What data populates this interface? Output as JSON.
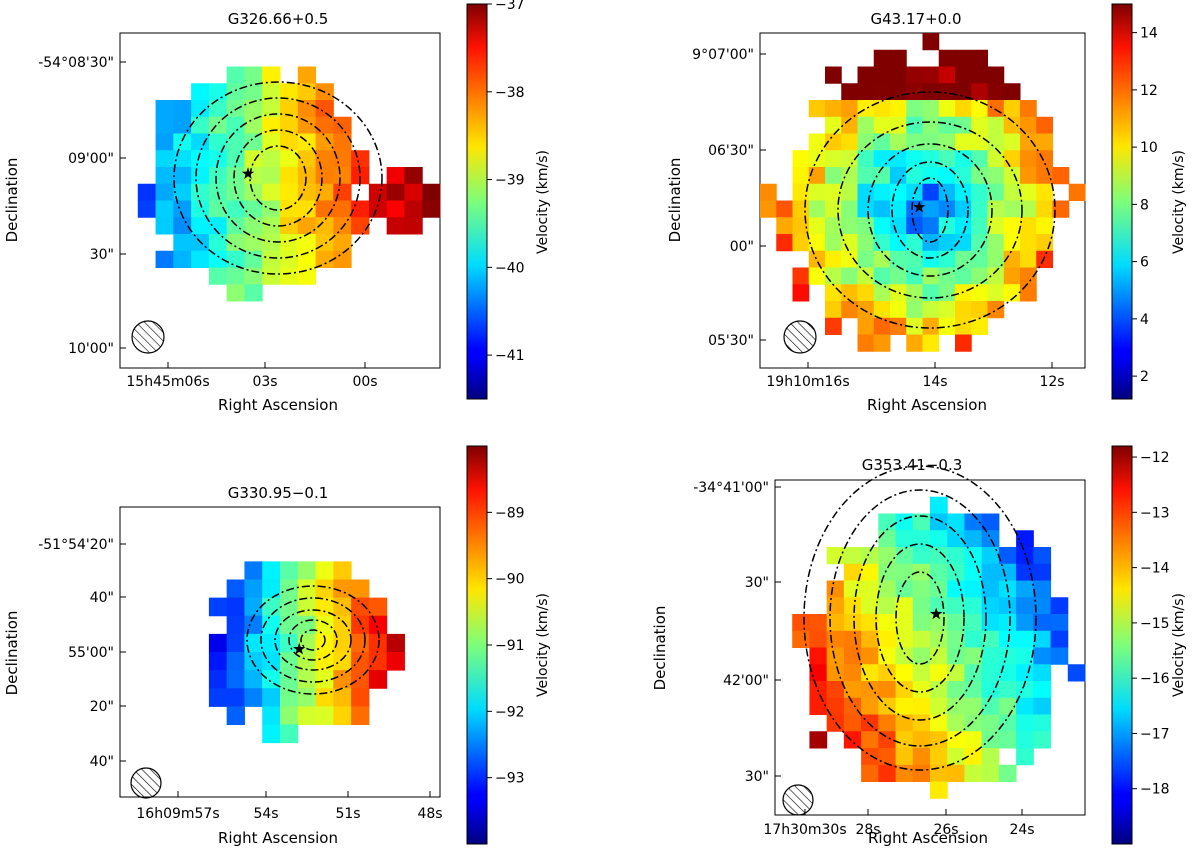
{
  "chart_data": [
    {
      "type": "heatmap",
      "title": "G326.66+0.5",
      "xlabel": "Right Ascension",
      "ylabel": "Declination",
      "colorbar_label": "Velocity (km/s)",
      "colormap": "jet",
      "clim": [
        -41.5,
        -37
      ],
      "colorbar_ticks": [
        -37,
        -38,
        -39,
        -40,
        -41
      ],
      "x_ticks": [
        "15h45m06s",
        "03s",
        "00s"
      ],
      "y_ticks": [
        "-54°08'30\"",
        "09'00\"",
        "30\"",
        "10'00\""
      ],
      "star": [
        0.4,
        0.42
      ],
      "velocity_field": {
        "center": [
          0.4,
          0.42
        ],
        "center_value": -39.2,
        "gradient": [
          4.0,
          -0.3
        ]
      }
    },
    {
      "type": "heatmap",
      "title": "G43.17+0.0",
      "xlabel": "Right Ascension",
      "ylabel": "Declination",
      "colorbar_label": "Velocity (km/s)",
      "colormap": "jet",
      "clim": [
        1.2,
        15
      ],
      "colorbar_ticks": [
        14,
        12,
        10,
        8,
        6,
        4,
        2
      ],
      "x_ticks": [
        "19h10m16s",
        "14s",
        "12s"
      ],
      "y_ticks": [
        "9°07'00\"",
        "06'30\"",
        "00\"",
        "05'30\""
      ],
      "star": [
        0.49,
        0.52
      ],
      "velocity_field": {
        "center": [
          0.49,
          0.52
        ],
        "center_value": 4.0,
        "gradient": [
          0,
          0
        ]
      }
    },
    {
      "type": "heatmap",
      "title": "G330.95−0.1",
      "xlabel": "Right Ascension",
      "ylabel": "Declination",
      "colorbar_label": "Velocity (km/s)",
      "colormap": "jet",
      "clim": [
        -94,
        -88
      ],
      "colorbar_ticks": [
        -89,
        -90,
        -91,
        -92,
        -93
      ],
      "x_ticks": [
        "16h09m57s",
        "54s",
        "51s",
        "48s"
      ],
      "y_ticks": [
        "-51°54'20\"",
        "40\"",
        "55'00\"",
        "20\"",
        "40\""
      ],
      "star": [
        0.56,
        0.49
      ],
      "velocity_field": {
        "center": [
          0.56,
          0.49
        ],
        "center_value": -91.0,
        "gradient": [
          8.5,
          0
        ]
      }
    },
    {
      "type": "heatmap",
      "title": "G353.41−0.3",
      "xlabel": "Right Ascension",
      "ylabel": "Declination",
      "colorbar_label": "Velocity (km/s)",
      "colormap": "jet",
      "clim": [
        -19,
        -11.8
      ],
      "colorbar_ticks": [
        -12,
        -13,
        -14,
        -15,
        -16,
        -17,
        -18
      ],
      "x_ticks": [
        "17h30m30s",
        "28s",
        "26s",
        "24s"
      ],
      "y_ticks": [
        "-34°41'00\"",
        "30\"",
        "42'00\"",
        "30\""
      ],
      "star": [
        0.52,
        0.4
      ],
      "velocity_field": {
        "center": [
          0.52,
          0.4
        ],
        "center_value": -15.5,
        "gradient": [
          -5.0,
          3.0
        ]
      }
    }
  ]
}
